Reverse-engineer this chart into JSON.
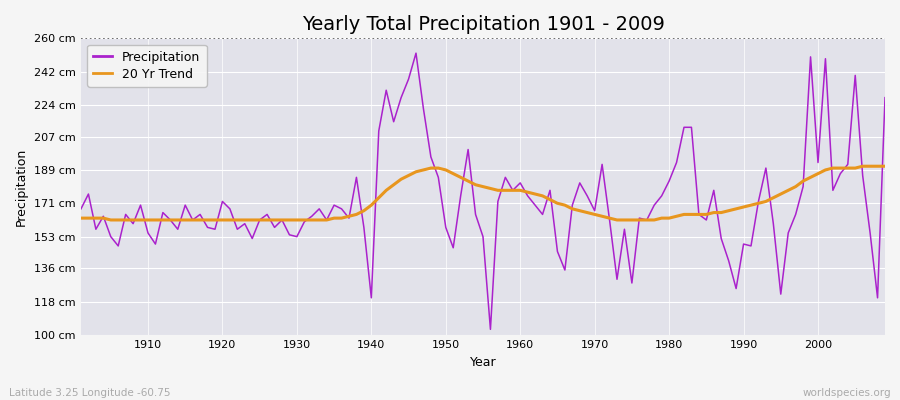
{
  "title": "Yearly Total Precipitation 1901 - 2009",
  "xlabel": "Year",
  "ylabel": "Precipitation",
  "subtitle_left": "Latitude 3.25 Longitude -60.75",
  "subtitle_right": "worldspecies.org",
  "years": [
    1901,
    1902,
    1903,
    1904,
    1905,
    1906,
    1907,
    1908,
    1909,
    1910,
    1911,
    1912,
    1913,
    1914,
    1915,
    1916,
    1917,
    1918,
    1919,
    1920,
    1921,
    1922,
    1923,
    1924,
    1925,
    1926,
    1927,
    1928,
    1929,
    1930,
    1931,
    1932,
    1933,
    1934,
    1935,
    1936,
    1937,
    1938,
    1939,
    1940,
    1941,
    1942,
    1943,
    1944,
    1945,
    1946,
    1947,
    1948,
    1949,
    1950,
    1951,
    1952,
    1953,
    1954,
    1955,
    1956,
    1957,
    1958,
    1959,
    1960,
    1961,
    1962,
    1963,
    1964,
    1965,
    1966,
    1967,
    1968,
    1969,
    1970,
    1971,
    1972,
    1973,
    1974,
    1975,
    1976,
    1977,
    1978,
    1979,
    1980,
    1981,
    1982,
    1983,
    1984,
    1985,
    1986,
    1987,
    1988,
    1989,
    1990,
    1991,
    1992,
    1993,
    1994,
    1995,
    1996,
    1997,
    1998,
    1999,
    2000,
    2001,
    2002,
    2003,
    2004,
    2005,
    2006,
    2007,
    2008,
    2009
  ],
  "precip": [
    168,
    176,
    157,
    164,
    153,
    148,
    165,
    160,
    170,
    155,
    149,
    166,
    162,
    157,
    170,
    162,
    165,
    158,
    157,
    172,
    168,
    157,
    160,
    152,
    162,
    165,
    158,
    162,
    154,
    153,
    161,
    164,
    168,
    162,
    170,
    168,
    163,
    185,
    158,
    120,
    210,
    232,
    215,
    228,
    238,
    252,
    222,
    196,
    185,
    158,
    147,
    175,
    200,
    165,
    153,
    103,
    172,
    185,
    178,
    182,
    175,
    170,
    165,
    178,
    145,
    135,
    170,
    182,
    175,
    167,
    192,
    162,
    130,
    157,
    128,
    163,
    162,
    170,
    175,
    183,
    193,
    212,
    212,
    165,
    162,
    178,
    152,
    140,
    125,
    149,
    148,
    172,
    190,
    160,
    122,
    155,
    165,
    180,
    250,
    193,
    249,
    178,
    187,
    192,
    240,
    186,
    155,
    120,
    228
  ],
  "trend": [
    163,
    163,
    163,
    163,
    162,
    162,
    162,
    162,
    162,
    162,
    162,
    162,
    162,
    162,
    162,
    162,
    162,
    162,
    162,
    162,
    162,
    162,
    162,
    162,
    162,
    162,
    162,
    162,
    162,
    162,
    162,
    162,
    162,
    162,
    163,
    163,
    164,
    165,
    167,
    170,
    174,
    178,
    181,
    184,
    186,
    188,
    189,
    190,
    190,
    189,
    187,
    185,
    183,
    181,
    180,
    179,
    178,
    178,
    178,
    178,
    177,
    176,
    175,
    173,
    171,
    170,
    168,
    167,
    166,
    165,
    164,
    163,
    162,
    162,
    162,
    162,
    162,
    162,
    163,
    163,
    164,
    165,
    165,
    165,
    165,
    166,
    166,
    167,
    168,
    169,
    170,
    171,
    172,
    174,
    176,
    178,
    180,
    183,
    185,
    187,
    189,
    190,
    190,
    190,
    190,
    191,
    191,
    191,
    191
  ],
  "ylim": [
    100,
    260
  ],
  "yticks": [
    100,
    118,
    136,
    153,
    171,
    189,
    207,
    224,
    242,
    260
  ],
  "ytick_labels": [
    "100 cm",
    "118 cm",
    "136 cm",
    "153 cm",
    "171 cm",
    "189 cm",
    "207 cm",
    "224 cm",
    "242 cm",
    "260 cm"
  ],
  "xticks": [
    1910,
    1920,
    1930,
    1940,
    1950,
    1960,
    1970,
    1980,
    1990,
    2000
  ],
  "precip_color": "#aa22cc",
  "trend_color": "#e8961e",
  "fig_bg_color": "#f5f5f5",
  "plot_bg_color": "#e2e2ea",
  "grid_color": "#ffffff",
  "dotted_line_y": 260,
  "dotted_line_color": "#555555",
  "title_fontsize": 14,
  "label_fontsize": 9,
  "tick_fontsize": 8,
  "legend_fontsize": 9
}
